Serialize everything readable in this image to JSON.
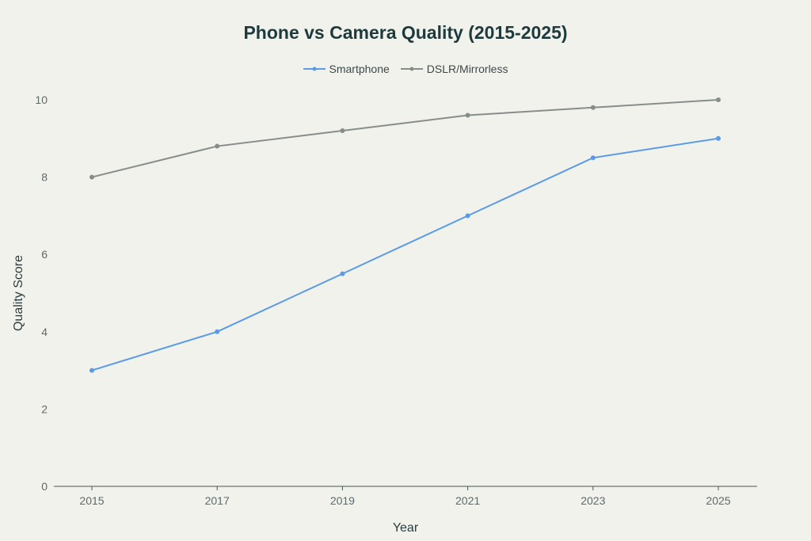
{
  "chart_data": {
    "type": "line",
    "title": "Phone vs Camera Quality (2015-2025)",
    "xlabel": "Year",
    "ylabel": "Quality Score",
    "x": [
      2015,
      2017,
      2019,
      2021,
      2023,
      2025
    ],
    "x_tick_labels": [
      "2015",
      "2017",
      "2019",
      "2021",
      "2023",
      "2025"
    ],
    "y_tick_labels": [
      "0",
      "2",
      "4",
      "6",
      "8",
      "10"
    ],
    "ylim": [
      0,
      10
    ],
    "grid": false,
    "legend_position": "top-center",
    "series": [
      {
        "name": "Smartphone",
        "color": "#5b9be6",
        "values": [
          3,
          4,
          5.5,
          7,
          8.5,
          9
        ]
      },
      {
        "name": "DSLR/Mirrorless",
        "color": "#868e8c",
        "values": [
          8,
          8.8,
          9.2,
          9.6,
          9.8,
          10
        ]
      }
    ]
  }
}
